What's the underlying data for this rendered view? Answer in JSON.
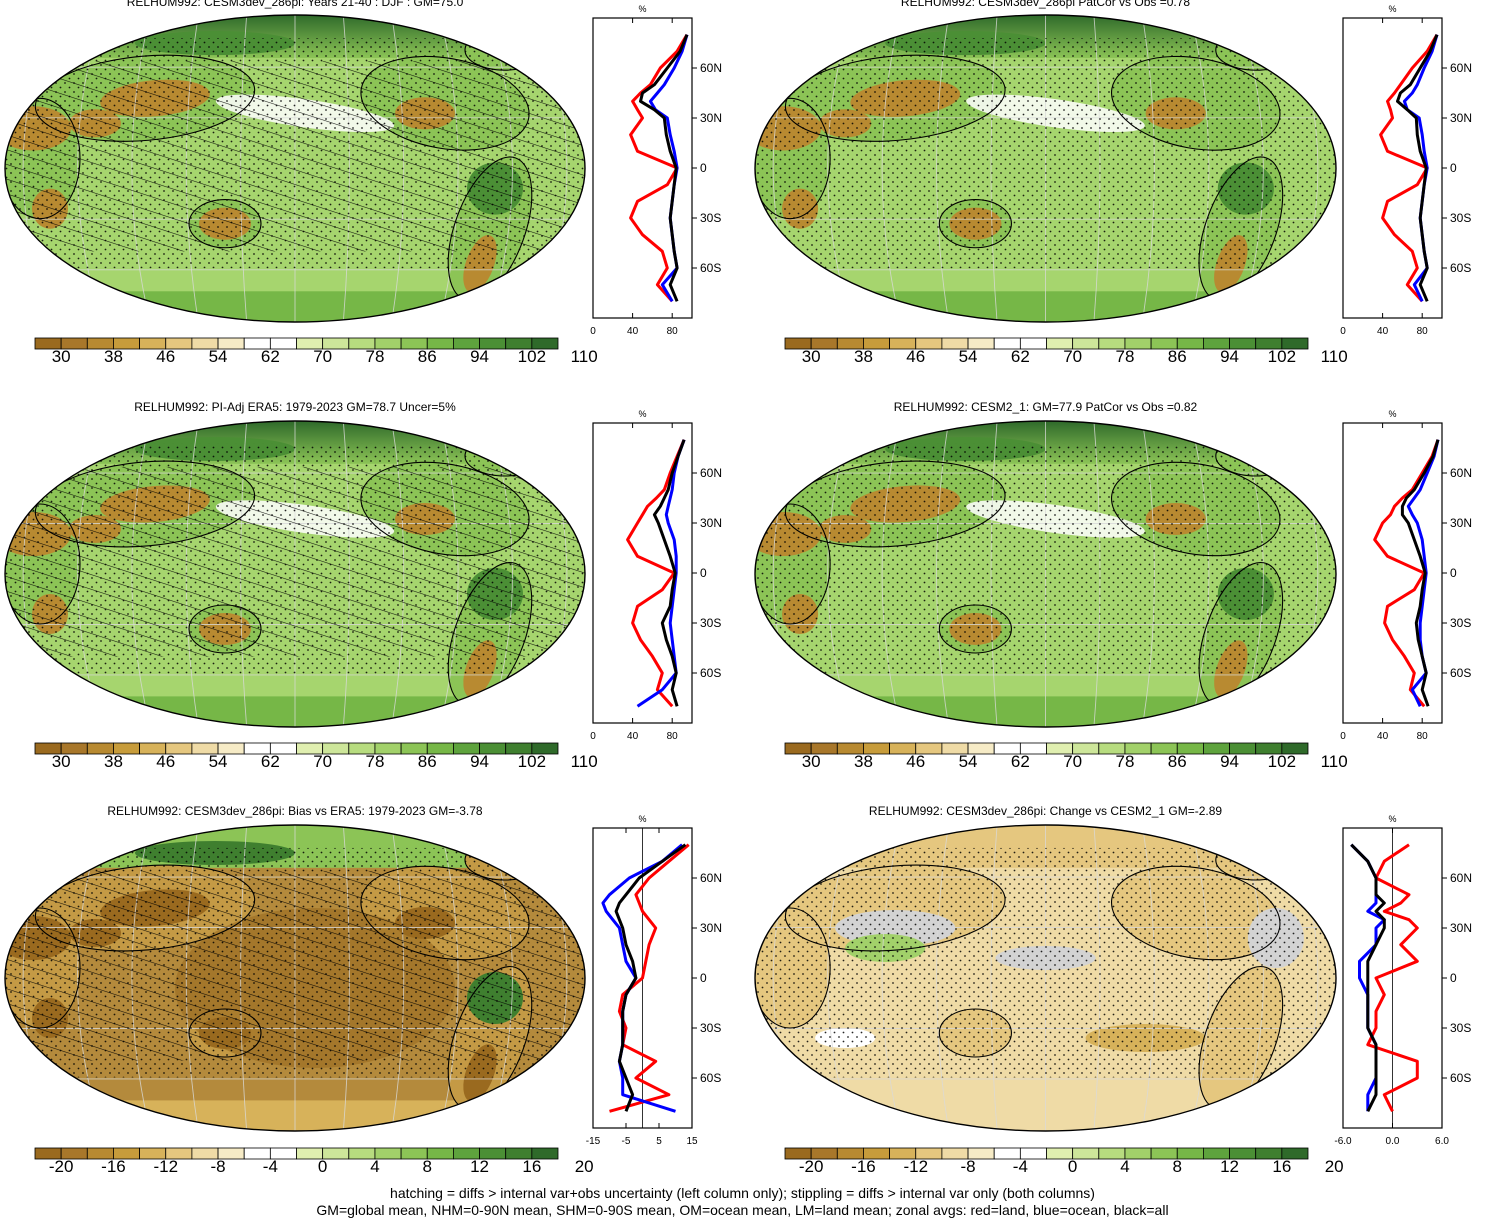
{
  "colors": {
    "brown_to_green_scale": [
      "#9a6a1f",
      "#a8772a",
      "#b88a31",
      "#c79c3b",
      "#d7b25a",
      "#e5c77f",
      "#efdba6",
      "#f6ebc6",
      "#ffffff",
      "#ffffff",
      "#e0efb0",
      "#cde69a",
      "#b7dc7f",
      "#a2d16a",
      "#8cc456",
      "#76b747",
      "#5ea33d",
      "#4b8f35",
      "#3f7f2f",
      "#2f6a2a"
    ],
    "land_zonal": "#ff0000",
    "ocean_zonal": "#0000ff",
    "all_zonal": "#000000",
    "missing": "#d3d3d3"
  },
  "icons": [
    "coastline-outline",
    "hatching-pattern",
    "stippling-pattern"
  ],
  "chart_data": [
    {
      "id": "p1",
      "type": "heatmap",
      "title": "RELHUM992: CESM3dev_286pi: Years 21-40 : DJF : GM=75.0",
      "colorbar": {
        "labels": [
          "30",
          "38",
          "46",
          "54",
          "62",
          "70",
          "78",
          "86",
          "94",
          "102",
          "110"
        ]
      },
      "zonal": {
        "unit": "%",
        "xlim": [
          0,
          100
        ],
        "xticks": [
          "0",
          "40",
          "80"
        ],
        "ylabels": [
          "60N",
          "30N",
          "0",
          "30S",
          "60S"
        ],
        "lat": [
          80,
          70,
          60,
          50,
          45,
          40,
          35,
          30,
          20,
          10,
          0,
          -10,
          -20,
          -30,
          -40,
          -50,
          -60,
          -70,
          -80
        ],
        "land": [
          95,
          85,
          68,
          58,
          48,
          40,
          45,
          50,
          38,
          45,
          85,
          75,
          45,
          38,
          50,
          70,
          75,
          65,
          80
        ],
        "ocean": [
          95,
          90,
          82,
          72,
          65,
          58,
          63,
          75,
          78,
          82,
          85,
          82,
          80,
          78,
          80,
          82,
          85,
          70,
          80
        ],
        "all": [
          95,
          88,
          75,
          62,
          50,
          48,
          62,
          72,
          74,
          78,
          84,
          82,
          80,
          78,
          80,
          82,
          85,
          78,
          85
        ]
      }
    },
    {
      "id": "p2",
      "type": "heatmap",
      "title": "RELHUM992: CESM3dev_286pi PatCor vs Obs =0.78",
      "colorbar": {
        "labels": [
          "30",
          "38",
          "46",
          "54",
          "62",
          "70",
          "78",
          "86",
          "94",
          "102",
          "110"
        ]
      },
      "zonal": {
        "unit": "%",
        "xlim": [
          0,
          100
        ],
        "xticks": [
          "0",
          "40",
          "80"
        ],
        "ylabels": [
          "60N",
          "30N",
          "0",
          "30S",
          "60S"
        ],
        "lat": [
          80,
          70,
          60,
          50,
          45,
          40,
          35,
          30,
          20,
          10,
          0,
          -10,
          -20,
          -30,
          -40,
          -50,
          -60,
          -70,
          -80
        ],
        "land": [
          95,
          85,
          70,
          58,
          52,
          45,
          48,
          50,
          38,
          45,
          85,
          75,
          45,
          40,
          52,
          70,
          75,
          65,
          80
        ],
        "ocean": [
          95,
          90,
          82,
          75,
          70,
          62,
          65,
          77,
          80,
          82,
          85,
          82,
          80,
          78,
          80,
          82,
          85,
          72,
          80
        ],
        "all": [
          95,
          88,
          78,
          68,
          58,
          55,
          65,
          74,
          75,
          78,
          84,
          82,
          80,
          78,
          80,
          82,
          85,
          78,
          85
        ]
      }
    },
    {
      "id": "p3",
      "type": "heatmap",
      "title": "RELHUM992: PI-Adj ERA5: 1979-2023 GM=78.7 Uncer=5%",
      "colorbar": {
        "labels": [
          "30",
          "38",
          "46",
          "54",
          "62",
          "70",
          "78",
          "86",
          "94",
          "102",
          "110"
        ]
      },
      "zonal": {
        "unit": "%",
        "xlim": [
          0,
          100
        ],
        "xticks": [
          "0",
          "40",
          "80"
        ],
        "ylabels": [
          "60N",
          "30N",
          "0",
          "30S",
          "60S"
        ],
        "lat": [
          80,
          70,
          60,
          50,
          45,
          40,
          35,
          30,
          20,
          10,
          0,
          -10,
          -20,
          -30,
          -40,
          -50,
          -60,
          -70,
          -80
        ],
        "land": [
          92,
          85,
          78,
          72,
          64,
          55,
          50,
          45,
          35,
          45,
          82,
          70,
          45,
          40,
          48,
          60,
          70,
          65,
          80
        ],
        "ocean": [
          92,
          86,
          82,
          80,
          78,
          76,
          74,
          76,
          82,
          84,
          84,
          82,
          80,
          78,
          80,
          82,
          84,
          70,
          45
        ],
        "all": [
          92,
          86,
          80,
          76,
          72,
          68,
          62,
          66,
          72,
          78,
          83,
          80,
          78,
          70,
          74,
          80,
          84,
          80,
          85
        ]
      }
    },
    {
      "id": "p4",
      "type": "heatmap",
      "title": "RELHUM992: CESM2_1: GM=77.9 PatCor vs Obs =0.82",
      "colorbar": {
        "labels": [
          "30",
          "38",
          "46",
          "54",
          "62",
          "70",
          "78",
          "86",
          "94",
          "102",
          "110"
        ]
      },
      "zonal": {
        "unit": "%",
        "xlim": [
          0,
          100
        ],
        "xticks": [
          "0",
          "40",
          "80"
        ],
        "ylabels": [
          "60N",
          "30N",
          "0",
          "30S",
          "60S"
        ],
        "lat": [
          80,
          70,
          60,
          50,
          45,
          40,
          35,
          30,
          20,
          10,
          0,
          -10,
          -20,
          -30,
          -40,
          -50,
          -60,
          -70,
          -80
        ],
        "land": [
          96,
          90,
          80,
          70,
          60,
          52,
          48,
          40,
          32,
          45,
          82,
          72,
          45,
          42,
          50,
          62,
          72,
          68,
          82
        ],
        "ocean": [
          96,
          92,
          85,
          78,
          72,
          66,
          70,
          75,
          80,
          82,
          84,
          82,
          80,
          78,
          78,
          80,
          84,
          70,
          78
        ],
        "all": [
          96,
          91,
          82,
          72,
          64,
          60,
          60,
          66,
          72,
          78,
          83,
          80,
          78,
          74,
          76,
          80,
          84,
          80,
          86
        ]
      }
    },
    {
      "id": "p5",
      "type": "heatmap",
      "title": "RELHUM992: CESM3dev_286pi: Bias vs ERA5: 1979-2023 GM=-3.78",
      "colorbar": {
        "labels": [
          "-20",
          "-16",
          "-12",
          "-8",
          "-4",
          "0",
          "4",
          "8",
          "12",
          "16",
          "20"
        ]
      },
      "zonal": {
        "unit": "%",
        "xlim": [
          -15,
          15
        ],
        "xticks": [
          "-15",
          "-5",
          "5",
          "15"
        ],
        "ylabels": [
          "60N",
          "30N",
          "0",
          "30S",
          "60S"
        ],
        "lat": [
          80,
          70,
          60,
          50,
          45,
          40,
          35,
          30,
          20,
          10,
          0,
          -10,
          -20,
          -30,
          -40,
          -50,
          -60,
          -70,
          -80
        ],
        "land": [
          14,
          8,
          2,
          -2,
          -1,
          0,
          2,
          4,
          2,
          1,
          0,
          -6,
          -7,
          -5,
          -6,
          4,
          -2,
          8,
          -10
        ],
        "ocean": [
          12,
          6,
          -4,
          -10,
          -12,
          -11,
          -9,
          -7,
          -6,
          -5,
          -2,
          -5,
          -6,
          -6,
          -6,
          -7,
          -6,
          -6,
          10
        ],
        "all": [
          13,
          6,
          -1,
          -5,
          -7,
          -8,
          -7,
          -6,
          -5,
          -3,
          -2,
          -5,
          -6,
          -6,
          -6,
          -7,
          -5,
          -3,
          -5
        ]
      }
    },
    {
      "id": "p6",
      "type": "heatmap",
      "title": "RELHUM992: CESM3dev_286pi: Change vs CESM2_1 GM=-2.89",
      "colorbar": {
        "labels": [
          "-20",
          "-16",
          "-12",
          "-8",
          "-4",
          "0",
          "4",
          "8",
          "12",
          "16",
          "20"
        ]
      },
      "zonal": {
        "unit": "%",
        "xlim": [
          -6,
          6
        ],
        "xticks": [
          "-6.0",
          "0.0",
          "6.0"
        ],
        "ylabels": [
          "60N",
          "30N",
          "0",
          "30S",
          "60S"
        ],
        "lat": [
          80,
          70,
          60,
          50,
          45,
          40,
          35,
          30,
          20,
          10,
          0,
          -10,
          -20,
          -30,
          -40,
          -50,
          -60,
          -70,
          -80
        ],
        "land": [
          2,
          -1,
          -2,
          2,
          1,
          -1,
          2,
          3,
          1,
          3,
          -2,
          -1,
          -2,
          -2,
          -3,
          3,
          3,
          -1,
          0
        ],
        "ocean": [
          -5,
          -3,
          -2,
          -2,
          -2,
          -3,
          -1,
          -2,
          -2,
          -4,
          -4,
          -3,
          -3,
          -3,
          -2,
          -2,
          -2,
          -3,
          -3
        ],
        "all": [
          -5,
          -3,
          -2,
          -2,
          -1,
          -2,
          -1,
          -1,
          -2,
          -3,
          -3,
          -3,
          -3,
          -3,
          -2,
          -2,
          -2,
          -2,
          -3
        ]
      }
    }
  ],
  "footer": {
    "line1": "hatching = diffs > internal var+obs uncertainty (left column only); stippling = diffs > internal var only (both columns)",
    "line2": "GM=global mean, NHM=0-90N mean, SHM=0-90S mean, OM=ocean mean, LM=land mean; zonal avgs: red=land, blue=ocean, black=all"
  }
}
